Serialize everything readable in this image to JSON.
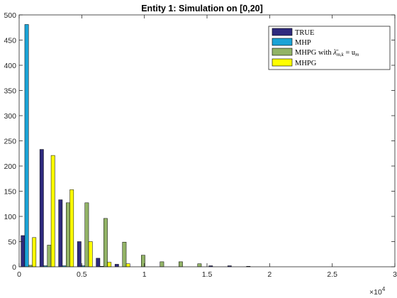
{
  "chart_data": {
    "type": "bar",
    "title": "Entity 1: Simulation on [0,20]",
    "xlabel": "",
    "ylabel": "",
    "xlim": [
      0,
      30000
    ],
    "ylim": [
      0,
      500
    ],
    "x_exponent_label": "×10",
    "x_exponent_power": "4",
    "x_ticks": [
      0,
      5000,
      10000,
      15000,
      20000,
      25000,
      30000
    ],
    "x_tick_labels": [
      "0",
      "0.5",
      "1",
      "1.5",
      "2",
      "2.5",
      "3"
    ],
    "y_ticks": [
      0,
      50,
      100,
      150,
      200,
      250,
      300,
      350,
      400,
      450,
      500
    ],
    "y_tick_labels": [
      "0",
      "50",
      "100",
      "150",
      "200",
      "250",
      "300",
      "350",
      "400",
      "450",
      "500"
    ],
    "bin_width": 1500,
    "bin_centers": [
      750,
      2250,
      3750,
      5250,
      6750,
      8250,
      9750,
      11250,
      12750,
      14250,
      15750,
      17250,
      18750
    ],
    "grid": false,
    "legend_position": "top-right",
    "series": [
      {
        "name": "TRUE",
        "color": "#2e2a7e",
        "values": [
          62,
          233,
          133,
          50,
          17,
          5,
          0,
          0,
          0,
          0,
          2,
          2,
          1
        ]
      },
      {
        "name": "MHP",
        "color": "#1aa3d6",
        "values": [
          481,
          2,
          2,
          2,
          1,
          0,
          0,
          0,
          0,
          0,
          0,
          0,
          0
        ]
      },
      {
        "name": "MHPG with λ̄m,k = um",
        "color": "#92b366",
        "values": [
          3,
          43,
          127,
          127,
          96,
          49,
          23,
          10,
          10,
          6,
          0,
          0,
          0
        ]
      },
      {
        "name": "MHPG",
        "color": "#ffff00",
        "values": [
          58,
          221,
          153,
          50,
          9,
          6,
          0,
          0,
          0,
          0,
          0,
          0,
          0
        ]
      }
    ],
    "legend": {
      "label_1": "TRUE",
      "label_2": "MHP",
      "label_3_prefix": "MHPG with ",
      "label_3_symbol": "λ̄",
      "label_3_sub": "m,k",
      "label_3_eq": " = u",
      "label_3_sub2": "m",
      "label_4": "MHPG"
    }
  }
}
